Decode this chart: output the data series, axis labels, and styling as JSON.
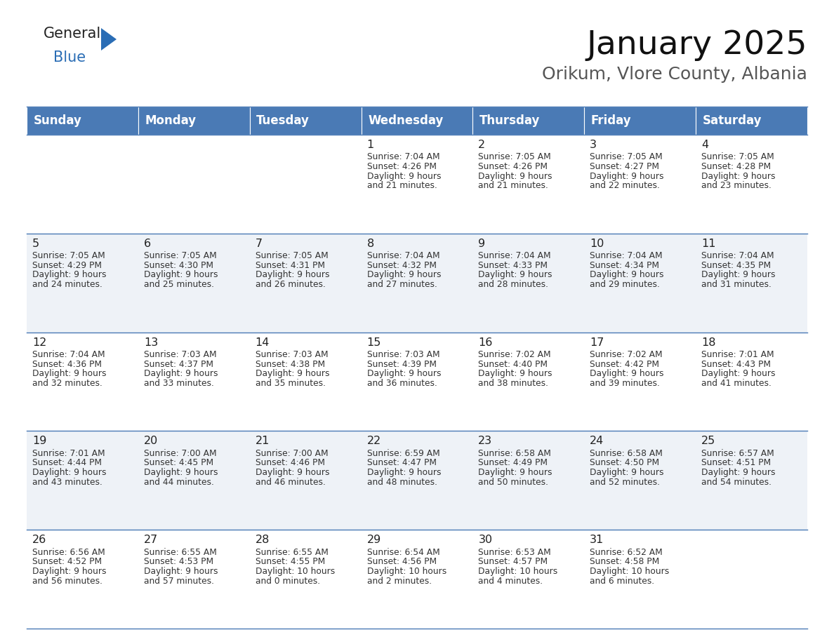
{
  "title": "January 2025",
  "subtitle": "Orikum, Vlore County, Albania",
  "header_bg": "#4a7ab5",
  "header_text_color": "#ffffff",
  "header_font_size": 12,
  "day_names": [
    "Sunday",
    "Monday",
    "Tuesday",
    "Wednesday",
    "Thursday",
    "Friday",
    "Saturday"
  ],
  "title_fontsize": 34,
  "subtitle_fontsize": 18,
  "cell_text_color": "#333333",
  "day_number_color": "#222222",
  "alt_row_bg": "#eef2f7",
  "normal_row_bg": "#ffffff",
  "grid_line_color": "#4a7ab5",
  "logo_general_color": "#222222",
  "logo_blue_color": "#2a6db5",
  "days": [
    {
      "date": 1,
      "col": 3,
      "row": 0,
      "sunrise": "7:04 AM",
      "sunset": "4:26 PM",
      "daylight": "9 hours and 21 minutes."
    },
    {
      "date": 2,
      "col": 4,
      "row": 0,
      "sunrise": "7:05 AM",
      "sunset": "4:26 PM",
      "daylight": "9 hours and 21 minutes."
    },
    {
      "date": 3,
      "col": 5,
      "row": 0,
      "sunrise": "7:05 AM",
      "sunset": "4:27 PM",
      "daylight": "9 hours and 22 minutes."
    },
    {
      "date": 4,
      "col": 6,
      "row": 0,
      "sunrise": "7:05 AM",
      "sunset": "4:28 PM",
      "daylight": "9 hours and 23 minutes."
    },
    {
      "date": 5,
      "col": 0,
      "row": 1,
      "sunrise": "7:05 AM",
      "sunset": "4:29 PM",
      "daylight": "9 hours and 24 minutes."
    },
    {
      "date": 6,
      "col": 1,
      "row": 1,
      "sunrise": "7:05 AM",
      "sunset": "4:30 PM",
      "daylight": "9 hours and 25 minutes."
    },
    {
      "date": 7,
      "col": 2,
      "row": 1,
      "sunrise": "7:05 AM",
      "sunset": "4:31 PM",
      "daylight": "9 hours and 26 minutes."
    },
    {
      "date": 8,
      "col": 3,
      "row": 1,
      "sunrise": "7:04 AM",
      "sunset": "4:32 PM",
      "daylight": "9 hours and 27 minutes."
    },
    {
      "date": 9,
      "col": 4,
      "row": 1,
      "sunrise": "7:04 AM",
      "sunset": "4:33 PM",
      "daylight": "9 hours and 28 minutes."
    },
    {
      "date": 10,
      "col": 5,
      "row": 1,
      "sunrise": "7:04 AM",
      "sunset": "4:34 PM",
      "daylight": "9 hours and 29 minutes."
    },
    {
      "date": 11,
      "col": 6,
      "row": 1,
      "sunrise": "7:04 AM",
      "sunset": "4:35 PM",
      "daylight": "9 hours and 31 minutes."
    },
    {
      "date": 12,
      "col": 0,
      "row": 2,
      "sunrise": "7:04 AM",
      "sunset": "4:36 PM",
      "daylight": "9 hours and 32 minutes."
    },
    {
      "date": 13,
      "col": 1,
      "row": 2,
      "sunrise": "7:03 AM",
      "sunset": "4:37 PM",
      "daylight": "9 hours and 33 minutes."
    },
    {
      "date": 14,
      "col": 2,
      "row": 2,
      "sunrise": "7:03 AM",
      "sunset": "4:38 PM",
      "daylight": "9 hours and 35 minutes."
    },
    {
      "date": 15,
      "col": 3,
      "row": 2,
      "sunrise": "7:03 AM",
      "sunset": "4:39 PM",
      "daylight": "9 hours and 36 minutes."
    },
    {
      "date": 16,
      "col": 4,
      "row": 2,
      "sunrise": "7:02 AM",
      "sunset": "4:40 PM",
      "daylight": "9 hours and 38 minutes."
    },
    {
      "date": 17,
      "col": 5,
      "row": 2,
      "sunrise": "7:02 AM",
      "sunset": "4:42 PM",
      "daylight": "9 hours and 39 minutes."
    },
    {
      "date": 18,
      "col": 6,
      "row": 2,
      "sunrise": "7:01 AM",
      "sunset": "4:43 PM",
      "daylight": "9 hours and 41 minutes."
    },
    {
      "date": 19,
      "col": 0,
      "row": 3,
      "sunrise": "7:01 AM",
      "sunset": "4:44 PM",
      "daylight": "9 hours and 43 minutes."
    },
    {
      "date": 20,
      "col": 1,
      "row": 3,
      "sunrise": "7:00 AM",
      "sunset": "4:45 PM",
      "daylight": "9 hours and 44 minutes."
    },
    {
      "date": 21,
      "col": 2,
      "row": 3,
      "sunrise": "7:00 AM",
      "sunset": "4:46 PM",
      "daylight": "9 hours and 46 minutes."
    },
    {
      "date": 22,
      "col": 3,
      "row": 3,
      "sunrise": "6:59 AM",
      "sunset": "4:47 PM",
      "daylight": "9 hours and 48 minutes."
    },
    {
      "date": 23,
      "col": 4,
      "row": 3,
      "sunrise": "6:58 AM",
      "sunset": "4:49 PM",
      "daylight": "9 hours and 50 minutes."
    },
    {
      "date": 24,
      "col": 5,
      "row": 3,
      "sunrise": "6:58 AM",
      "sunset": "4:50 PM",
      "daylight": "9 hours and 52 minutes."
    },
    {
      "date": 25,
      "col": 6,
      "row": 3,
      "sunrise": "6:57 AM",
      "sunset": "4:51 PM",
      "daylight": "9 hours and 54 minutes."
    },
    {
      "date": 26,
      "col": 0,
      "row": 4,
      "sunrise": "6:56 AM",
      "sunset": "4:52 PM",
      "daylight": "9 hours and 56 minutes."
    },
    {
      "date": 27,
      "col": 1,
      "row": 4,
      "sunrise": "6:55 AM",
      "sunset": "4:53 PM",
      "daylight": "9 hours and 57 minutes."
    },
    {
      "date": 28,
      "col": 2,
      "row": 4,
      "sunrise": "6:55 AM",
      "sunset": "4:55 PM",
      "daylight": "10 hours and 0 minutes."
    },
    {
      "date": 29,
      "col": 3,
      "row": 4,
      "sunrise": "6:54 AM",
      "sunset": "4:56 PM",
      "daylight": "10 hours and 2 minutes."
    },
    {
      "date": 30,
      "col": 4,
      "row": 4,
      "sunrise": "6:53 AM",
      "sunset": "4:57 PM",
      "daylight": "10 hours and 4 minutes."
    },
    {
      "date": 31,
      "col": 5,
      "row": 4,
      "sunrise": "6:52 AM",
      "sunset": "4:58 PM",
      "daylight": "10 hours and 6 minutes."
    }
  ]
}
